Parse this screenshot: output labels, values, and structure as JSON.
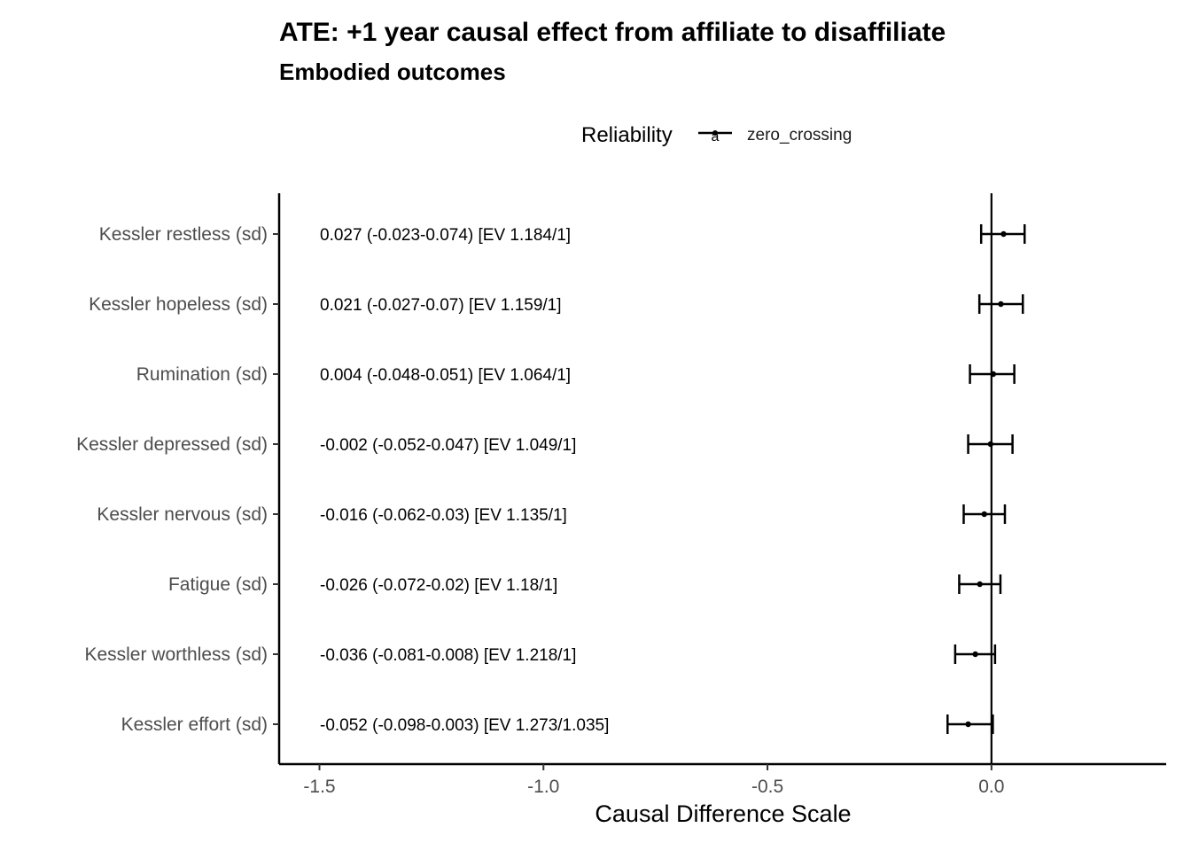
{
  "chart_data": {
    "type": "forest",
    "title": "ATE: +1 year causal effect from affiliate to disaffiliate",
    "subtitle": "Embodied outcomes",
    "xlabel": "Causal Difference Scale",
    "ylabel": "",
    "xlim": [
      -1.59,
      0.39
    ],
    "xticks": [
      -1.5,
      -1.0,
      -0.5,
      0.0
    ],
    "xtick_labels": [
      "-1.5",
      "-1.0",
      "-0.5",
      "0.0"
    ],
    "grid": false,
    "legend": {
      "title": "Reliability",
      "position": "top",
      "key_glyph": "a",
      "entries": [
        {
          "label": "zero_crossing",
          "color": "#000000"
        }
      ]
    },
    "reference_line": 0,
    "rows": [
      {
        "label": "Kessler restless (sd)",
        "estimate": 0.027,
        "lower": -0.023,
        "upper": 0.074,
        "annotation": "0.027 (-0.023-0.074) [EV 1.184/1]"
      },
      {
        "label": "Kessler hopeless (sd)",
        "estimate": 0.021,
        "lower": -0.027,
        "upper": 0.07,
        "annotation": "0.021 (-0.027-0.07) [EV 1.159/1]"
      },
      {
        "label": "Rumination (sd)",
        "estimate": 0.004,
        "lower": -0.048,
        "upper": 0.051,
        "annotation": "0.004 (-0.048-0.051) [EV 1.064/1]"
      },
      {
        "label": "Kessler depressed (sd)",
        "estimate": -0.002,
        "lower": -0.052,
        "upper": 0.047,
        "annotation": "-0.002 (-0.052-0.047) [EV 1.049/1]"
      },
      {
        "label": "Kessler nervous (sd)",
        "estimate": -0.016,
        "lower": -0.062,
        "upper": 0.03,
        "annotation": "-0.016 (-0.062-0.03) [EV 1.135/1]"
      },
      {
        "label": "Fatigue (sd)",
        "estimate": -0.026,
        "lower": -0.072,
        "upper": 0.02,
        "annotation": "-0.026 (-0.072-0.02) [EV 1.18/1]"
      },
      {
        "label": "Kessler worthless (sd)",
        "estimate": -0.036,
        "lower": -0.081,
        "upper": 0.008,
        "annotation": "-0.036 (-0.081-0.008) [EV 1.218/1]"
      },
      {
        "label": "Kessler effort (sd)",
        "estimate": -0.052,
        "lower": -0.098,
        "upper": 0.003,
        "annotation": "-0.052 (-0.098-0.003) [EV 1.273/1.035]"
      }
    ]
  }
}
